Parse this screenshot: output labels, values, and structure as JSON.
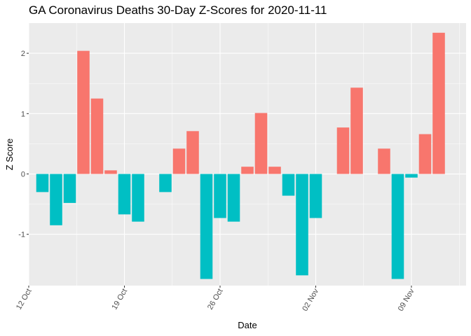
{
  "chart_data": {
    "type": "bar",
    "title": "GA Coronavirus Deaths 30-Day Z-Scores for 2020-11-11",
    "xlabel": "Date",
    "ylabel": "Z Score",
    "x_type": "date",
    "xlim": [
      "2020-10-12",
      "2020-11-13"
    ],
    "ylim": [
      -1.85,
      2.5
    ],
    "grid": true,
    "legend": "none",
    "colors": {
      "positive": "#F8766D",
      "negative": "#00BFC4",
      "panel": "#EBEBEB",
      "grid": "#FFFFFF"
    },
    "x_ticks": [
      {
        "date": "2020-10-12",
        "label": "12 Oct"
      },
      {
        "date": "2020-10-19",
        "label": "19 Oct"
      },
      {
        "date": "2020-10-26",
        "label": "26 Oct"
      },
      {
        "date": "2020-11-02",
        "label": "02 Nov"
      },
      {
        "date": "2020-11-09",
        "label": "09 Nov"
      }
    ],
    "y_ticks": [
      -1,
      0,
      1,
      2
    ],
    "bars": [
      {
        "date": "2020-10-13",
        "value": -0.3
      },
      {
        "date": "2020-10-14",
        "value": -0.85
      },
      {
        "date": "2020-10-15",
        "value": -0.48
      },
      {
        "date": "2020-10-16",
        "value": 2.04
      },
      {
        "date": "2020-10-17",
        "value": 1.25
      },
      {
        "date": "2020-10-18",
        "value": 0.06
      },
      {
        "date": "2020-10-19",
        "value": -0.67
      },
      {
        "date": "2020-10-20",
        "value": -0.79
      },
      {
        "date": "2020-10-22",
        "value": -0.3
      },
      {
        "date": "2020-10-23",
        "value": 0.42
      },
      {
        "date": "2020-10-24",
        "value": 0.71
      },
      {
        "date": "2020-10-25",
        "value": -1.74
      },
      {
        "date": "2020-10-26",
        "value": -0.73
      },
      {
        "date": "2020-10-27",
        "value": -0.79
      },
      {
        "date": "2020-10-28",
        "value": 0.12
      },
      {
        "date": "2020-10-29",
        "value": 1.01
      },
      {
        "date": "2020-10-30",
        "value": 0.12
      },
      {
        "date": "2020-10-31",
        "value": -0.36
      },
      {
        "date": "2020-11-01",
        "value": -1.68
      },
      {
        "date": "2020-11-02",
        "value": -0.73
      },
      {
        "date": "2020-11-04",
        "value": 0.77
      },
      {
        "date": "2020-11-05",
        "value": 1.43
      },
      {
        "date": "2020-11-07",
        "value": 0.42
      },
      {
        "date": "2020-11-08",
        "value": -1.74
      },
      {
        "date": "2020-11-09",
        "value": -0.06
      },
      {
        "date": "2020-11-10",
        "value": 0.66
      },
      {
        "date": "2020-11-11",
        "value": 2.34
      }
    ]
  }
}
